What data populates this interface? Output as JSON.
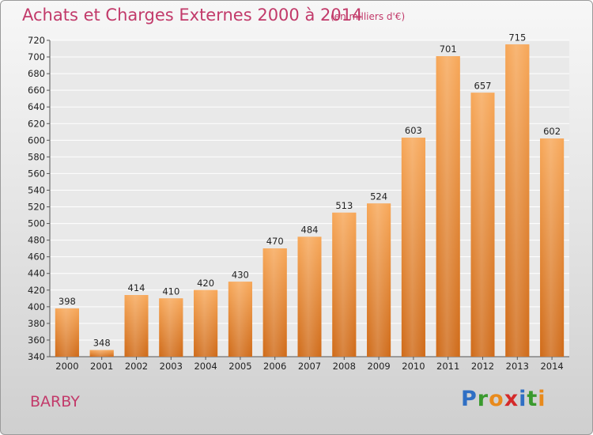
{
  "header": {
    "title": "Achats et Charges Externes 2000 à 2014",
    "unit": "(en milliers d'€)"
  },
  "footer": {
    "commune": "BARBY",
    "logo_letters": [
      "P",
      "r",
      "o",
      "x",
      "i",
      "t",
      "i"
    ],
    "logo_colors": [
      "#2f6fc4",
      "#3a9a2e",
      "#e88a1c",
      "#d42a2a",
      "#2f6fc4",
      "#3a9a2e",
      "#e88a1c"
    ]
  },
  "chart_data": {
    "type": "bar",
    "title": "Achats et Charges Externes 2000 à 2014",
    "subtitle": "(en milliers d'€)",
    "categories": [
      "2000",
      "2001",
      "2002",
      "2003",
      "2004",
      "2005",
      "2006",
      "2007",
      "2008",
      "2009",
      "2010",
      "2011",
      "2012",
      "2013",
      "2014"
    ],
    "values": [
      398,
      348,
      414,
      410,
      420,
      430,
      470,
      484,
      513,
      524,
      603,
      701,
      657,
      715,
      602
    ],
    "ylim": [
      340,
      720
    ],
    "yticks": [
      340,
      360,
      380,
      400,
      420,
      440,
      460,
      480,
      500,
      520,
      540,
      560,
      580,
      600,
      620,
      640,
      660,
      680,
      700,
      720
    ],
    "grid": true,
    "bar_color": "#f0923a"
  }
}
